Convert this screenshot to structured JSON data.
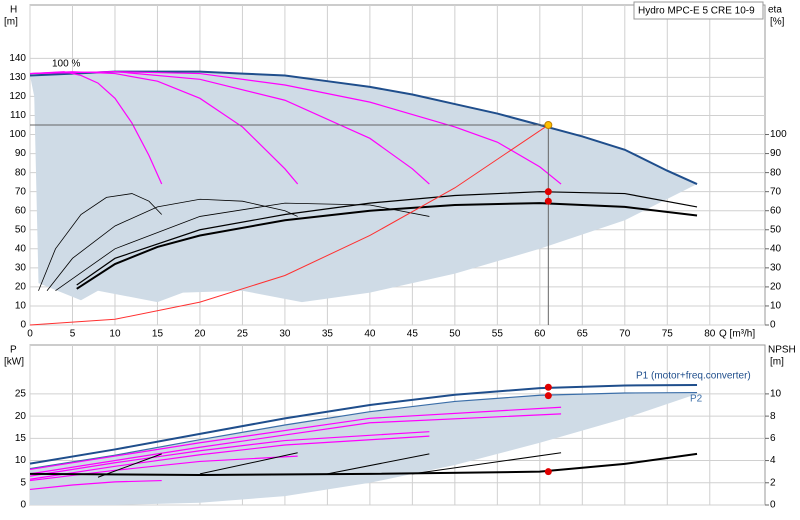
{
  "chart_data": [
    {
      "type": "line",
      "legend_title": "Hydro MPC-E 5 CRE 10-9",
      "annotation": "100 %",
      "xlabel": "Q [m³/h]",
      "ylabel": "H",
      "yunit": "[m]",
      "y2label": "eta",
      "y2unit": "[%]",
      "xlim": [
        0,
        86.5
      ],
      "xticks": [
        0,
        5,
        10,
        15,
        20,
        25,
        30,
        35,
        40,
        45,
        50,
        55,
        60,
        65,
        70,
        75,
        80
      ],
      "xtick_labels": true,
      "ylim": [
        0,
        168
      ],
      "yticks": [
        0,
        10,
        20,
        30,
        40,
        50,
        60,
        70,
        80,
        90,
        100,
        110,
        120,
        130,
        140
      ],
      "y2lim": [
        0,
        168
      ],
      "y2ticks": [
        0,
        10,
        20,
        30,
        40,
        50,
        60,
        70,
        80,
        90,
        100
      ],
      "grid": true,
      "band": {
        "color": "#cfdbe6",
        "upper": 0,
        "x": [
          78.5,
          70,
          60,
          50,
          40,
          32,
          25,
          18,
          15,
          8,
          6,
          1,
          0.5
        ],
        "values": [
          74,
          55,
          40,
          27,
          17,
          12,
          18,
          17,
          12,
          18,
          13,
          22,
          120
        ]
      },
      "series": [
        {
          "color": "#1f4e8c",
          "width": 2,
          "x": [
            0,
            5,
            10,
            15,
            20,
            25,
            30,
            35,
            40,
            45,
            50,
            55,
            60,
            65,
            70,
            75,
            78.5
          ],
          "values": [
            131,
            132,
            133,
            133,
            133,
            132,
            131,
            128,
            125,
            121,
            116,
            111,
            105,
            99,
            92,
            81,
            74
          ]
        },
        {
          "color": "#ff00ff",
          "width": 1.2,
          "x": [
            0,
            4,
            6,
            8,
            10,
            12,
            14,
            15.5
          ],
          "values": [
            132,
            133,
            131,
            127,
            119,
            106,
            89,
            74
          ]
        },
        {
          "color": "#ff00ff",
          "width": 1.2,
          "x": [
            0,
            5,
            10,
            15,
            20,
            25,
            30,
            31.5
          ],
          "values": [
            132,
            133,
            132,
            128,
            119,
            104,
            82,
            74
          ]
        },
        {
          "color": "#ff00ff",
          "width": 1.2,
          "x": [
            0,
            10,
            20,
            30,
            40,
            45,
            47
          ],
          "values": [
            132,
            133,
            129,
            118,
            98,
            82,
            74
          ]
        },
        {
          "color": "#ff00ff",
          "width": 1.2,
          "x": [
            0,
            10,
            20,
            30,
            40,
            50,
            55,
            60,
            62.5
          ],
          "values": [
            132,
            133,
            132,
            126,
            117,
            104,
            96,
            83,
            74
          ]
        },
        {
          "color": "#000000",
          "width": 0.8,
          "axis": "y2",
          "x": [
            1,
            3,
            6,
            9,
            12,
            14,
            15.5
          ],
          "values": [
            18,
            40,
            58,
            67,
            69,
            65,
            58
          ]
        },
        {
          "color": "#000000",
          "width": 0.8,
          "axis": "y2",
          "x": [
            2,
            5,
            10,
            15,
            20,
            25,
            30,
            31.5
          ],
          "values": [
            18,
            35,
            52,
            62,
            66,
            65,
            60,
            57
          ]
        },
        {
          "color": "#000000",
          "width": 0.8,
          "axis": "y2",
          "x": [
            3,
            10,
            20,
            30,
            40,
            47
          ],
          "values": [
            18,
            40,
            57,
            64,
            63,
            57
          ]
        },
        {
          "color": "#000000",
          "width": 1.2,
          "axis": "y2",
          "x": [
            5.5,
            10,
            20,
            30,
            40,
            50,
            60,
            70,
            78.5
          ],
          "values": [
            21,
            35,
            50,
            58,
            64,
            68,
            70,
            69,
            62
          ]
        },
        {
          "color": "#000000",
          "width": 2,
          "axis": "y2",
          "x": [
            5.5,
            10,
            15,
            20,
            30,
            40,
            50,
            60,
            70,
            78.5
          ],
          "values": [
            19,
            32,
            41,
            47,
            55,
            60,
            63,
            64,
            62,
            57.5
          ]
        },
        {
          "color": "#ff3030",
          "width": 1,
          "x": [
            0,
            10,
            20,
            30,
            40,
            50,
            61
          ],
          "values": [
            0,
            3,
            12,
            26,
            47,
            72,
            105
          ]
        }
      ],
      "points": [
        {
          "color": "#ffc000",
          "crosshair": true,
          "x": 61,
          "y": 105
        },
        {
          "color": "#e00000",
          "axis": "y2",
          "x": 61,
          "y": 70
        },
        {
          "color": "#e00000",
          "axis": "y2",
          "x": 61,
          "y": 65
        }
      ]
    },
    {
      "type": "line",
      "ylabel": "P",
      "yunit": "[kW]",
      "y2label": "NPSH",
      "y2unit": "[m]",
      "xlim": [
        0,
        86.5
      ],
      "xticks": [
        0,
        5,
        10,
        15,
        20,
        25,
        30,
        35,
        40,
        45,
        50,
        55,
        60,
        65,
        70,
        75,
        80
      ],
      "xtick_labels": false,
      "ylim": [
        0,
        36
      ],
      "yticks": [
        0,
        5,
        10,
        15,
        20,
        25
      ],
      "y2lim": [
        0,
        14.4
      ],
      "y2ticks": [
        0,
        2,
        4,
        6,
        8,
        10
      ],
      "grid": true,
      "band": {
        "color": "#cfdbe6",
        "upper": 1,
        "x": [
          78.5,
          70,
          60,
          50,
          40,
          30,
          20,
          10,
          0
        ],
        "values": [
          25,
          19.5,
          14,
          9,
          5,
          2,
          0.5,
          0,
          0
        ]
      },
      "series": [
        {
          "name": "P1 (motor+freq.converter)",
          "color": "#1f4e8c",
          "width": 2,
          "x": [
            0,
            10,
            20,
            30,
            40,
            50,
            60,
            70,
            78.5
          ],
          "values": [
            9.3,
            12.5,
            16,
            19.5,
            22.5,
            24.8,
            26.3,
            26.9,
            27
          ]
        },
        {
          "name": "P2",
          "color": "#3b6ea8",
          "width": 1.2,
          "x": [
            0,
            10,
            20,
            30,
            40,
            50,
            60,
            70,
            78.5
          ],
          "values": [
            8.2,
            11.2,
            14.7,
            18,
            21,
            23.3,
            24.7,
            25.2,
            25.3
          ]
        },
        {
          "color": "#ff00ff",
          "width": 1.2,
          "x": [
            0,
            5,
            10,
            15.5
          ],
          "values": [
            3.5,
            4.5,
            5.2,
            5.5
          ]
        },
        {
          "color": "#ff00ff",
          "width": 1.2,
          "x": [
            0,
            10,
            20,
            31.5
          ],
          "values": [
            5.5,
            7.8,
            9.8,
            11
          ]
        },
        {
          "color": "#ff00ff",
          "width": 1.2,
          "x": [
            0,
            10,
            20,
            30,
            47
          ],
          "values": [
            6.5,
            9.5,
            12.2,
            14.5,
            16.5
          ]
        },
        {
          "color": "#ff00ff",
          "width": 1.2,
          "x": [
            0,
            10,
            20,
            30,
            47
          ],
          "values": [
            5.8,
            8.7,
            11.3,
            13.5,
            15.5
          ]
        },
        {
          "color": "#ff00ff",
          "width": 1.2,
          "x": [
            0,
            20,
            40,
            62.5
          ],
          "values": [
            8,
            14,
            19.5,
            22
          ]
        },
        {
          "color": "#ff00ff",
          "width": 1.2,
          "x": [
            0,
            20,
            40,
            62.5
          ],
          "values": [
            7,
            13,
            18.5,
            20.5
          ]
        },
        {
          "color": "#000000",
          "width": 1,
          "axis": "y2",
          "x": [
            8,
            15.5
          ],
          "values": [
            2.5,
            4.6
          ]
        },
        {
          "color": "#000000",
          "width": 1,
          "axis": "y2",
          "x": [
            20,
            31.5
          ],
          "values": [
            2.8,
            4.7
          ]
        },
        {
          "color": "#000000",
          "width": 1,
          "axis": "y2",
          "x": [
            35,
            47
          ],
          "values": [
            2.8,
            4.6
          ]
        },
        {
          "color": "#000000",
          "width": 1,
          "axis": "y2",
          "x": [
            45,
            62.5
          ],
          "values": [
            2.8,
            4.7
          ]
        },
        {
          "color": "#000000",
          "width": 2,
          "axis": "y2",
          "x": [
            0,
            20,
            40,
            60,
            70,
            78.5
          ],
          "values": [
            2.8,
            2.7,
            2.8,
            3,
            3.7,
            4.6
          ]
        }
      ],
      "points": [
        {
          "color": "#e00000",
          "x": 61,
          "y": 26.5
        },
        {
          "color": "#e00000",
          "x": 61,
          "y": 24.6
        },
        {
          "color": "#e00000",
          "axis": "y2",
          "x": 61,
          "y": 3
        }
      ]
    }
  ]
}
